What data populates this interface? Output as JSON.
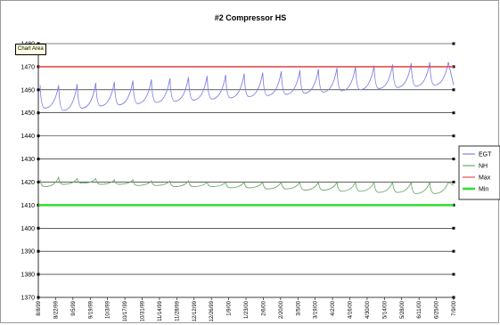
{
  "tooltip": "Chart Area",
  "colors": {
    "EGT": "#8080e8",
    "NH": "#6aaa6a",
    "Max": "#e05050",
    "Min": "#33dd33",
    "grid": "#000000",
    "background": "#ffffff"
  },
  "chart_data": {
    "type": "line",
    "title": "#2 Compressor HS",
    "xlabel": "",
    "ylabel": "",
    "ylim": [
      1370,
      1480
    ],
    "yticks": [
      1370,
      1380,
      1390,
      1400,
      1410,
      1420,
      1430,
      1440,
      1450,
      1460,
      1470,
      1480
    ],
    "ytick_labels": [
      "1370",
      "1380",
      "1390",
      "1400",
      "1410",
      "1420",
      "1430",
      "1440",
      "1450",
      "1460",
      "1470",
      "1480"
    ],
    "x_tick_labels": [
      "8/8/99",
      "8/22/99",
      "9/5/99",
      "9/19/99",
      "10/3/99",
      "10/17/99",
      "10/31/99",
      "11/14/99",
      "11/28/99",
      "12/12/99",
      "12/26/99",
      "1/9/00",
      "1/23/00",
      "2/6/00",
      "2/20/00",
      "3/5/00",
      "3/19/00",
      "4/2/00",
      "4/16/00",
      "4/30/00",
      "5/14/00",
      "5/28/00",
      "6/11/00",
      "6/25/00",
      "7/9/00"
    ],
    "grid": true,
    "legend_position": "right",
    "series": [
      {
        "name": "EGT",
        "sawtooth_peaks": [
          1462,
          1462,
          1462.5,
          1463,
          1463.5,
          1464,
          1464.5,
          1465,
          1465.5,
          1466,
          1466.5,
          1467,
          1467.5,
          1468,
          1468.5,
          1469,
          1469.5,
          1470,
          1470.5,
          1471,
          1471.5,
          1472
        ],
        "sawtooth_troughs": [
          1452,
          1451,
          1452,
          1453,
          1453.5,
          1454,
          1454.5,
          1455,
          1455.5,
          1456,
          1456.5,
          1457,
          1457.5,
          1458,
          1458.5,
          1459,
          1459.5,
          1460,
          1460.5,
          1461,
          1461.5,
          1462
        ],
        "end_value": 1462
      },
      {
        "name": "NH",
        "sawtooth_peaks": [
          1421,
          1422,
          1421.5,
          1421.5,
          1421,
          1421,
          1420.5,
          1420.5,
          1420.5,
          1420,
          1420,
          1420,
          1420,
          1420,
          1420,
          1420,
          1420,
          1420,
          1420,
          1420,
          1420,
          1420
        ],
        "sawtooth_troughs": [
          1418,
          1419,
          1419.5,
          1419,
          1419,
          1418.5,
          1418.5,
          1418,
          1418,
          1418,
          1417.5,
          1417.5,
          1417,
          1417,
          1416.5,
          1416.5,
          1416,
          1416,
          1415.5,
          1415.5,
          1415,
          1415
        ],
        "end_value": 1418.5
      },
      {
        "name": "Max",
        "values": [
          1470,
          1470
        ]
      },
      {
        "name": "Min",
        "values": [
          1410,
          1410
        ]
      }
    ]
  }
}
